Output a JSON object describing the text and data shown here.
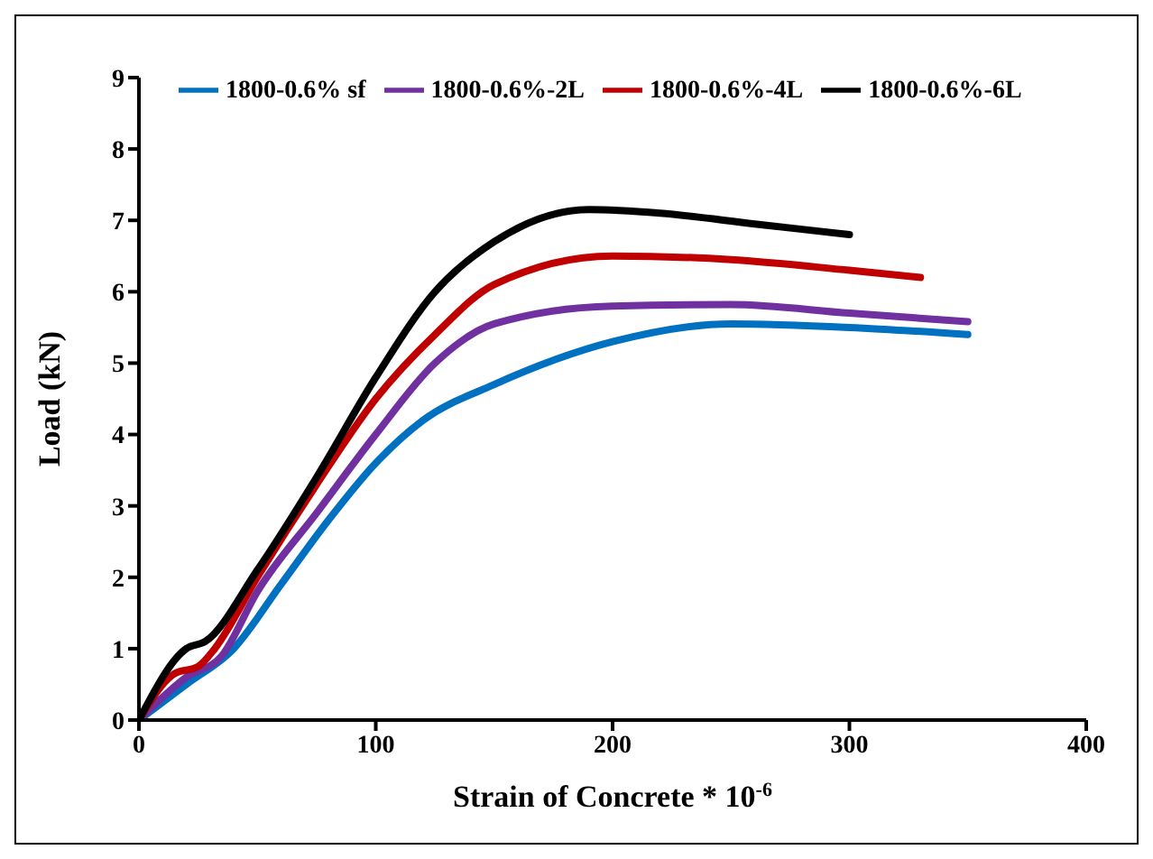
{
  "chart_data": {
    "type": "line",
    "xlabel": "Strain of Concrete * 10$^{-6}$",
    "ylabel": "Load (kN)",
    "xlim": [
      0,
      400
    ],
    "xticks": [
      0,
      100,
      200,
      300,
      400
    ],
    "ylim": [
      0,
      9
    ],
    "yticks": [
      0,
      1,
      2,
      3,
      4,
      5,
      6,
      7,
      8,
      9
    ],
    "grid": false,
    "legend": "top left",
    "marker": "none",
    "line_style": "solid",
    "series": [
      {
        "name": "1800-0.6% sf",
        "color": "#0070c0",
        "x": [
          0,
          20,
          40,
          60,
          80,
          100,
          120,
          150,
          200,
          250,
          300,
          350
        ],
        "values": [
          0,
          0.5,
          1.0,
          1.9,
          2.8,
          3.6,
          4.2,
          4.7,
          5.3,
          5.55,
          5.5,
          5.4
        ]
      },
      {
        "name": "1800-0.6%-2L",
        "color": "#7030a0",
        "x": [
          0,
          20,
          35,
          50,
          75,
          100,
          125,
          150,
          200,
          250,
          300,
          350
        ],
        "values": [
          0,
          0.6,
          0.9,
          1.8,
          2.9,
          4.0,
          5.0,
          5.55,
          5.8,
          5.82,
          5.7,
          5.58
        ]
      },
      {
        "name": "1800-0.6%-4L",
        "color": "#c00000",
        "x": [
          0,
          15,
          25,
          32,
          50,
          75,
          100,
          125,
          150,
          200,
          250,
          300,
          330
        ],
        "values": [
          0,
          0.65,
          0.75,
          1.0,
          2.0,
          3.3,
          4.5,
          5.4,
          6.1,
          6.5,
          6.45,
          6.3,
          6.2
        ]
      },
      {
        "name": "1800-0.6%-6L",
        "color": "#000000",
        "x": [
          0,
          20,
          28,
          50,
          75,
          100,
          125,
          150,
          190,
          220,
          260,
          300
        ],
        "values": [
          0,
          1.0,
          1.1,
          2.1,
          3.4,
          4.8,
          6.0,
          6.7,
          7.15,
          7.1,
          6.95,
          6.8
        ]
      }
    ]
  }
}
